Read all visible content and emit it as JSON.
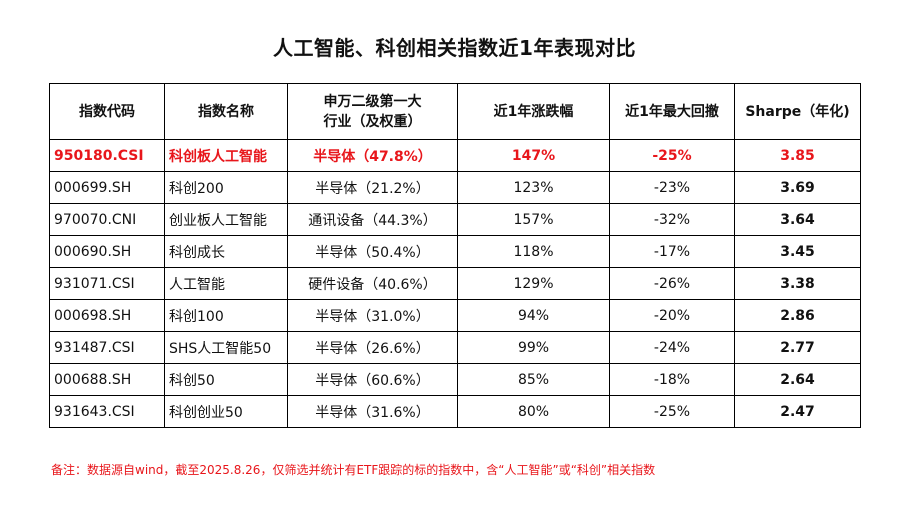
{
  "title": "人工智能、科创相关指数近1年表现对比",
  "table": {
    "headers": {
      "code": "指数代码",
      "name": "指数名称",
      "industry_line1": "申万二级第一大",
      "industry_line2": "行业（及权重）",
      "return_1y": "近1年涨跌幅",
      "max_drawdown": "近1年最大回撤",
      "sharpe": "Sharpe（年化)"
    },
    "rows": [
      {
        "code": "950180.CSI",
        "name": "科创板人工智能",
        "industry": "半导体（47.8%）",
        "return_1y": "147%",
        "max_drawdown": "-25%",
        "sharpe": "3.85",
        "highlight": true
      },
      {
        "code": "000699.SH",
        "name": "科创200",
        "industry": "半导体（21.2%）",
        "return_1y": "123%",
        "max_drawdown": "-23%",
        "sharpe": "3.69"
      },
      {
        "code": "970070.CNI",
        "name": "创业板人工智能",
        "industry": "通讯设备（44.3%）",
        "return_1y": "157%",
        "max_drawdown": "-32%",
        "sharpe": "3.64"
      },
      {
        "code": "000690.SH",
        "name": "科创成长",
        "industry": "半导体（50.4%）",
        "return_1y": "118%",
        "max_drawdown": "-17%",
        "sharpe": "3.45"
      },
      {
        "code": "931071.CSI",
        "name": "人工智能",
        "industry": "硬件设备（40.6%）",
        "return_1y": "129%",
        "max_drawdown": "-26%",
        "sharpe": "3.38"
      },
      {
        "code": "000698.SH",
        "name": "科创100",
        "industry": "半导体（31.0%）",
        "return_1y": "94%",
        "max_drawdown": "-20%",
        "sharpe": "2.86"
      },
      {
        "code": "931487.CSI",
        "name": "SHS人工智能50",
        "industry": "半导体（26.6%）",
        "return_1y": "99%",
        "max_drawdown": "-24%",
        "sharpe": "2.77"
      },
      {
        "code": "000688.SH",
        "name": "科创50",
        "industry": "半导体（60.6%）",
        "return_1y": "85%",
        "max_drawdown": "-18%",
        "sharpe": "2.64"
      },
      {
        "code": "931643.CSI",
        "name": "科创创业50",
        "industry": "半导体（31.6%）",
        "return_1y": "80%",
        "max_drawdown": "-25%",
        "sharpe": "2.47"
      }
    ]
  },
  "note": "备注：数据源自wind，截至2025.8.26，仅筛选并统计有ETF跟踪的标的指数中，含“人工智能”或“科创”相关指数",
  "colors": {
    "highlight": "#e8161b",
    "border": "#000000",
    "text": "#111111"
  }
}
